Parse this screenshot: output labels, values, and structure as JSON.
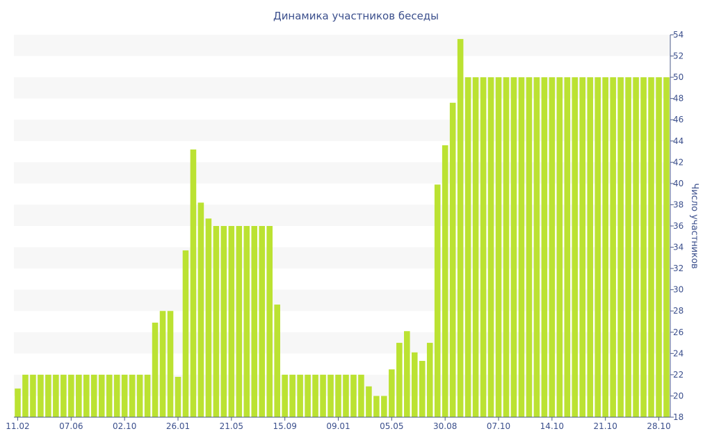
{
  "colors": {
    "bar": "#bbe232",
    "band": "#f7f7f7",
    "axis": "#4a5a8a",
    "text": "#3b4f8c"
  },
  "chart_data": {
    "type": "bar",
    "title": "Динамика участников беседы",
    "xlabel": "",
    "ylabel": "Число участников",
    "ylim": [
      18,
      54
    ],
    "yticks": [
      18,
      20,
      22,
      24,
      26,
      28,
      30,
      32,
      34,
      36,
      38,
      40,
      42,
      44,
      46,
      48,
      50,
      52,
      54
    ],
    "x_tick_labels": [
      {
        "index": 0,
        "label": "11.02"
      },
      {
        "index": 7,
        "label": "07.06"
      },
      {
        "index": 14,
        "label": "02.10"
      },
      {
        "index": 21,
        "label": "26.01"
      },
      {
        "index": 28,
        "label": "21.05"
      },
      {
        "index": 35,
        "label": "15.09"
      },
      {
        "index": 42,
        "label": "09.01"
      },
      {
        "index": 49,
        "label": "05.05"
      },
      {
        "index": 56,
        "label": "30.08"
      },
      {
        "index": 63,
        "label": "07.10"
      },
      {
        "index": 70,
        "label": "14.10"
      },
      {
        "index": 77,
        "label": "21.10"
      },
      {
        "index": 84,
        "label": "28.10"
      }
    ],
    "grid": "alternating horizontal bands",
    "y_axis_side": "right",
    "values": [
      20.7,
      22,
      22,
      22,
      22,
      22,
      22,
      22,
      22,
      22,
      22,
      22,
      22,
      22,
      22,
      22,
      22,
      22,
      26.9,
      28,
      28,
      21.8,
      33.7,
      43.2,
      38.2,
      36.7,
      36,
      36,
      36,
      36,
      36,
      36,
      36,
      36,
      28.6,
      22,
      22,
      22,
      22,
      22,
      22,
      22,
      22,
      22,
      22,
      22,
      20.9,
      20,
      20,
      22.5,
      25,
      26.1,
      24.1,
      23.3,
      25,
      39.9,
      43.6,
      47.6,
      53.6,
      50,
      50,
      50,
      50,
      50,
      50,
      50,
      50,
      50,
      50,
      50,
      50,
      50,
      50,
      50,
      50,
      50,
      50,
      50,
      50,
      50,
      50,
      50,
      50,
      50,
      50,
      50
    ]
  }
}
